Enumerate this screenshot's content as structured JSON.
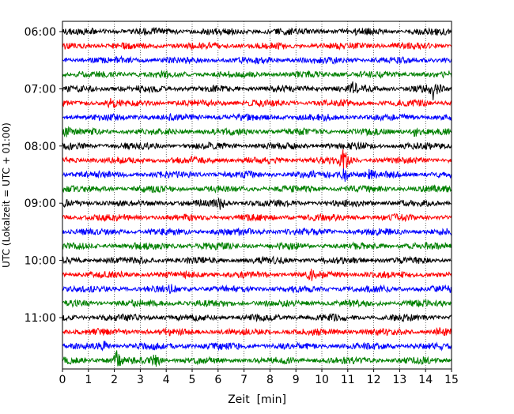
{
  "chart_data": {
    "type": "line",
    "subtype": "seismogram-helicorder",
    "xlabel": "Zeit  [min]",
    "ylabel": "UTC (Lokalzeit = UTC + 01:00)",
    "xlim": [
      0,
      15
    ],
    "x_ticks": [
      "0",
      "1",
      "2",
      "3",
      "4",
      "5",
      "6",
      "7",
      "8",
      "9",
      "10",
      "11",
      "12",
      "13",
      "14",
      "15"
    ],
    "y_tick_labels": [
      "06:00",
      "07:00",
      "08:00",
      "09:00",
      "10:00",
      "11:00"
    ],
    "row_start_times": [
      "06:00",
      "06:15",
      "06:30",
      "06:45",
      "07:00",
      "07:15",
      "07:30",
      "07:45",
      "08:00",
      "08:15",
      "08:30",
      "08:45",
      "09:00",
      "09:15",
      "09:30",
      "09:45",
      "10:00",
      "10:15",
      "10:30",
      "10:45",
      "11:00",
      "11:15",
      "11:30",
      "11:45"
    ],
    "row_colors": [
      "#000000",
      "#ff0000",
      "#0000ff",
      "#008000"
    ],
    "vertical_grid": "dotted, every minute",
    "events": [
      {
        "row": 4,
        "minute": 14.3,
        "amplitude": 1.2
      },
      {
        "row": 4,
        "minute": 11.2,
        "amplitude": 0.7
      },
      {
        "row": 5,
        "minute": 1.9,
        "amplitude": 0.55
      },
      {
        "row": 7,
        "minute": 0.15,
        "amplitude": 0.7
      },
      {
        "row": 7,
        "minute": 13.6,
        "amplitude": 0.6
      },
      {
        "row": 9,
        "minute": 10.85,
        "amplitude": 1.6
      },
      {
        "row": 10,
        "minute": 10.9,
        "amplitude": 1.1
      },
      {
        "row": 10,
        "minute": 11.9,
        "amplitude": 0.7
      },
      {
        "row": 12,
        "minute": 6.1,
        "amplitude": 0.7
      },
      {
        "row": 17,
        "minute": 9.6,
        "amplitude": 0.6
      },
      {
        "row": 18,
        "minute": 4.2,
        "amplitude": 0.6
      },
      {
        "row": 21,
        "minute": 14.6,
        "amplitude": 0.6
      },
      {
        "row": 22,
        "minute": 1.6,
        "amplitude": 0.7
      },
      {
        "row": 23,
        "minute": 2.1,
        "amplitude": 1.4
      },
      {
        "row": 23,
        "minute": 3.6,
        "amplitude": 1.0
      }
    ],
    "grid": "x dotted",
    "legend": "none"
  }
}
